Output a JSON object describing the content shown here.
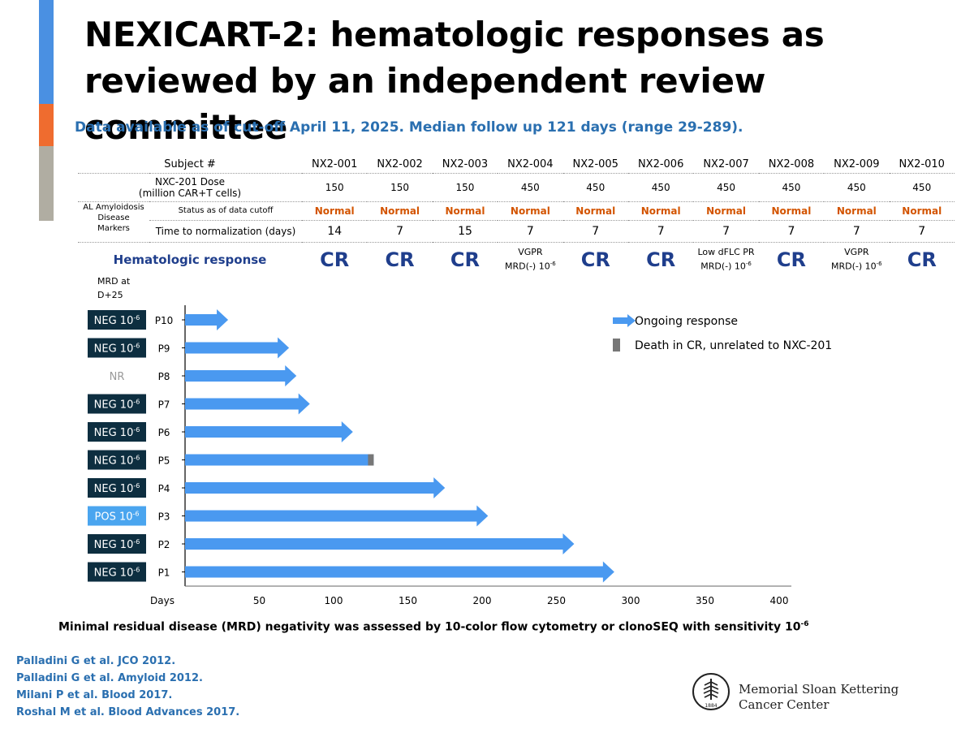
{
  "title": "NEXICART-2: hematologic responses as reviewed by an independent review committee",
  "subtitle": "Data available as of cut-off April 11, 2025.  Median follow up 121 days (range 29-289).",
  "colors": {
    "accent_blue": "#4a90e2",
    "accent_orange": "#ef6c2f",
    "accent_gray": "#b0ada2",
    "bar_blue": "#4a99f0",
    "navy_box": "#0d2e40",
    "pos_box": "#4aa5ef",
    "death_gray": "#777777",
    "normal_orange": "#d35400",
    "cr_navy": "#1f3e8c"
  },
  "table": {
    "subject_label": "Subject #",
    "dose_label_line1": "NXC-201 Dose",
    "dose_label_line2": "(million CAR+T cells)",
    "group_label_line1": "AL Amyloidosis",
    "group_label_line2": "Disease",
    "group_label_line3": "Markers",
    "status_label": "Status as of data cutoff",
    "time_label": "Time to normalization (days)",
    "response_label": "Hematologic response",
    "subjects": [
      {
        "id": "NX2-001",
        "dose": "150",
        "status": "Normal",
        "time": "14",
        "response": "CR",
        "response_line2": ""
      },
      {
        "id": "NX2-002",
        "dose": "150",
        "status": "Normal",
        "time": "7",
        "response": "CR",
        "response_line2": ""
      },
      {
        "id": "NX2-003",
        "dose": "150",
        "status": "Normal",
        "time": "15",
        "response": "CR",
        "response_line2": ""
      },
      {
        "id": "NX2-004",
        "dose": "450",
        "status": "Normal",
        "time": "7",
        "response": "VGPR",
        "response_line2": "MRD(-) 10-6"
      },
      {
        "id": "NX2-005",
        "dose": "450",
        "status": "Normal",
        "time": "7",
        "response": "CR",
        "response_line2": ""
      },
      {
        "id": "NX2-006",
        "dose": "450",
        "status": "Normal",
        "time": "7",
        "response": "CR",
        "response_line2": ""
      },
      {
        "id": "NX2-007",
        "dose": "450",
        "status": "Normal",
        "time": "7",
        "response": "Low dFLC PR",
        "response_line2": "MRD(-) 10-6"
      },
      {
        "id": "NX2-008",
        "dose": "450",
        "status": "Normal",
        "time": "7",
        "response": "CR",
        "response_line2": ""
      },
      {
        "id": "NX2-009",
        "dose": "450",
        "status": "Normal",
        "time": "7",
        "response": "VGPR",
        "response_line2": "MRD(-) 10-6"
      },
      {
        "id": "NX2-010",
        "dose": "450",
        "status": "Normal",
        "time": "7",
        "response": "CR",
        "response_line2": ""
      }
    ]
  },
  "mrd_header_line1": "MRD at",
  "mrd_header_line2": "D+25",
  "chart_data": {
    "type": "bar",
    "orientation": "horizontal",
    "xlabel": "Days",
    "xlim": [
      0,
      400
    ],
    "xticks": [
      "50",
      "100",
      "150",
      "200",
      "250",
      "300",
      "350",
      "400"
    ],
    "categories": [
      "P10",
      "P9",
      "P8",
      "P7",
      "P6",
      "P5",
      "P4",
      "P3",
      "P2",
      "P1"
    ],
    "values": [
      29,
      70,
      75,
      84,
      113,
      127,
      175,
      204,
      262,
      289
    ],
    "ongoing": [
      true,
      true,
      true,
      true,
      true,
      false,
      true,
      true,
      true,
      true
    ],
    "death_in_cr": [
      false,
      false,
      false,
      false,
      false,
      true,
      false,
      false,
      false,
      false
    ],
    "mrd": [
      {
        "text": "NEG 10",
        "exp": "-6",
        "kind": "neg"
      },
      {
        "text": "NEG 10",
        "exp": "-6",
        "kind": "neg"
      },
      {
        "text": "NR",
        "exp": "",
        "kind": "nr"
      },
      {
        "text": "NEG 10",
        "exp": "-6",
        "kind": "neg"
      },
      {
        "text": "NEG 10",
        "exp": "-6",
        "kind": "neg"
      },
      {
        "text": "NEG 10",
        "exp": "-6",
        "kind": "neg"
      },
      {
        "text": "NEG 10",
        "exp": "-6",
        "kind": "neg"
      },
      {
        "text": "POS 10",
        "exp": "-6",
        "kind": "pos"
      },
      {
        "text": "NEG 10",
        "exp": "-6",
        "kind": "neg"
      },
      {
        "text": "NEG 10",
        "exp": "-6",
        "kind": "neg"
      }
    ],
    "legend": [
      {
        "label": "Ongoing response",
        "marker": "arrow"
      },
      {
        "label": "Death in CR, unrelated to NXC-201",
        "marker": "gray-box"
      }
    ],
    "legend_position": "top-right",
    "grid": false
  },
  "footnote": "Minimal residual disease (MRD) negativity was assessed by 10-color flow cytometry or clonoSEQ with sensitivity 10",
  "footnote_exp": "-6",
  "references": [
    "Palladini G et al. JCO 2012.",
    "Palladini G et al. Amyloid 2012.",
    "Milani P et al. Blood 2017.",
    "Roshal M et al. Blood Advances 2017."
  ],
  "logo": {
    "line1": "Memorial Sloan Kettering",
    "line2": "Cancer Center",
    "year": "1884",
    "icon": "msk-logo-icon"
  }
}
